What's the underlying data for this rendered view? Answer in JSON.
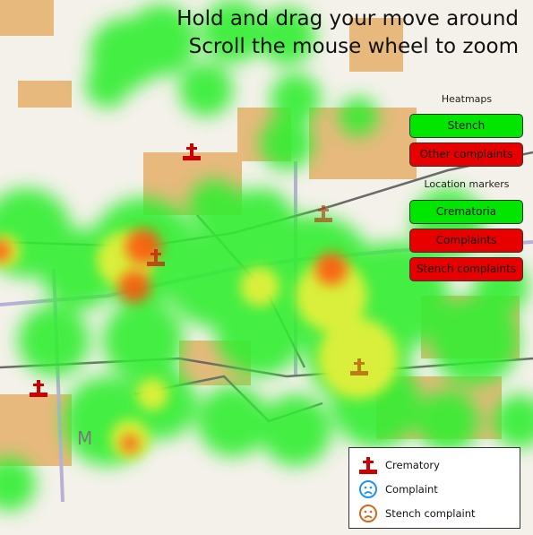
{
  "instructions": {
    "line1": "Hold and drag your move around",
    "line2": "Scroll the mouse wheel to zoom"
  },
  "panel": {
    "heatmaps_label": "Heatmaps",
    "stench_button": "Stench",
    "other_complaints_button": "Other complaints",
    "location_markers_label": "Location markers",
    "crematoria_button": "Crematoria",
    "complaints_button": "Complaints",
    "stench_complaints_button": "Stench complaints"
  },
  "legend": {
    "crematory": "Crematory",
    "complaint": "Complaint",
    "stench_complaint": "Stench complaint"
  },
  "colors": {
    "button_on": "#00e600",
    "button_off": "#e80000",
    "crematory_marker": "#cc0000",
    "complaint_icon": "#1e90ff",
    "stench_complaint_icon": "#d2691e",
    "heat_low": "#00ff00",
    "heat_mid": "#ffff00",
    "heat_high": "#ff0000"
  },
  "icons": {
    "crematory": "grave-cross-icon",
    "complaint": "sad-face-icon",
    "stench_complaint": "sad-face-icon"
  },
  "map_map_letter": "M"
}
